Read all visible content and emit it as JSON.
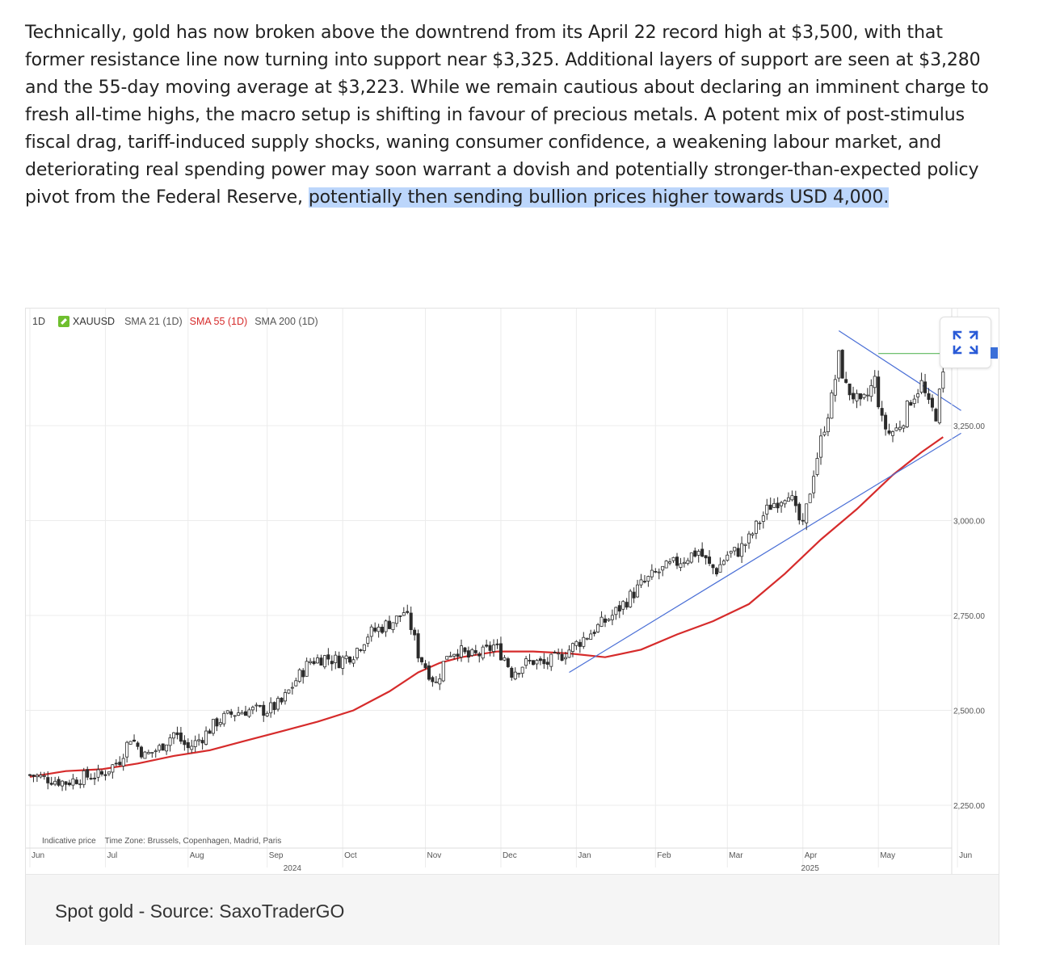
{
  "article": {
    "text_before": "Technically, gold has now broken above the downtrend from its April 22 record high at $3,500, with that former resistance line now turning into support near $3,325. Additional layers of support are seen at $3,280 and the 55-day moving average at $3,223. While we remain cautious about declaring an imminent charge to fresh all-time highs, the macro setup is shifting in favour of precious metals. A potent mix of post-stimulus fiscal drag, tariff-induced supply shocks, waning consumer confidence, a weakening labour market, and deteriorating real spending power may soon warrant a dovish and potentially stronger-than-expected policy pivot from the Federal Reserve, ",
    "text_highlighted": "potentially then sending bullion prices higher towards USD 4,000."
  },
  "figure": {
    "caption": "Spot gold - Source: SaxoTraderGO",
    "legend": {
      "timeframe": "1D",
      "symbol": "XAUUSD",
      "sma21": "SMA 21 (1D)",
      "sma55": "SMA 55 (1D)",
      "sma200": "SMA 200 (1D)"
    },
    "footnote": "Indicative price    Time Zone: Brussels, Copenhagen, Madrid, Paris",
    "expand_icon": "expand-arrows-icon"
  },
  "chart_data": {
    "type": "candlestick",
    "symbol": "XAUUSD",
    "timeframe": "1D",
    "colors": {
      "candles": "#2b2b2b",
      "sma55": "#d62b2b",
      "trendlines": "#4a6fd6",
      "resistance": "#5cb85c"
    },
    "ylim": [
      2100,
      3550
    ],
    "y_ticks": [
      {
        "value": 2250,
        "label": "2,250.00"
      },
      {
        "value": 2500,
        "label": "2,500.00"
      },
      {
        "value": 2750,
        "label": "2,750.00"
      },
      {
        "value": 3000,
        "label": "3,000.00"
      },
      {
        "value": 3250,
        "label": "3,250.00"
      }
    ],
    "x_months": [
      {
        "label": "Jun",
        "index": 0
      },
      {
        "label": "Jul",
        "index": 21
      },
      {
        "label": "Aug",
        "index": 44
      },
      {
        "label": "Sep",
        "index": 66
      },
      {
        "label": "Oct",
        "index": 87
      },
      {
        "label": "Nov",
        "index": 110
      },
      {
        "label": "Dec",
        "index": 131
      },
      {
        "label": "Jan",
        "index": 152
      },
      {
        "label": "Feb",
        "index": 174
      },
      {
        "label": "Mar",
        "index": 194
      },
      {
        "label": "Apr",
        "index": 215
      },
      {
        "label": "May",
        "index": 236
      },
      {
        "label": "Jun",
        "index": 258
      }
    ],
    "year_labels": [
      {
        "label": "2024",
        "index": 73
      },
      {
        "label": "2025",
        "index": 217
      }
    ],
    "close_path": [
      [
        0,
        2330
      ],
      [
        5,
        2320
      ],
      [
        10,
        2310
      ],
      [
        15,
        2325
      ],
      [
        20,
        2330
      ],
      [
        25,
        2370
      ],
      [
        28,
        2430
      ],
      [
        32,
        2380
      ],
      [
        36,
        2400
      ],
      [
        40,
        2440
      ],
      [
        44,
        2400
      ],
      [
        48,
        2430
      ],
      [
        52,
        2470
      ],
      [
        56,
        2490
      ],
      [
        60,
        2500
      ],
      [
        66,
        2500
      ],
      [
        70,
        2520
      ],
      [
        74,
        2580
      ],
      [
        78,
        2630
      ],
      [
        82,
        2640
      ],
      [
        86,
        2630
      ],
      [
        90,
        2650
      ],
      [
        94,
        2700
      ],
      [
        98,
        2720
      ],
      [
        102,
        2740
      ],
      [
        104,
        2760
      ],
      [
        106,
        2720
      ],
      [
        108,
        2650
      ],
      [
        111,
        2600
      ],
      [
        113,
        2570
      ],
      [
        116,
        2650
      ],
      [
        119,
        2660
      ],
      [
        122,
        2640
      ],
      [
        126,
        2650
      ],
      [
        129,
        2670
      ],
      [
        132,
        2640
      ],
      [
        134,
        2600
      ],
      [
        137,
        2620
      ],
      [
        140,
        2630
      ],
      [
        143,
        2620
      ],
      [
        147,
        2640
      ],
      [
        150,
        2660
      ],
      [
        154,
        2690
      ],
      [
        158,
        2720
      ],
      [
        162,
        2750
      ],
      [
        166,
        2790
      ],
      [
        170,
        2830
      ],
      [
        174,
        2860
      ],
      [
        178,
        2880
      ],
      [
        182,
        2900
      ],
      [
        186,
        2920
      ],
      [
        189,
        2880
      ],
      [
        191,
        2870
      ],
      [
        194,
        2910
      ],
      [
        197,
        2920
      ],
      [
        200,
        2950
      ],
      [
        203,
        3000
      ],
      [
        206,
        3040
      ],
      [
        209,
        3060
      ],
      [
        211,
        3080
      ],
      [
        213,
        3020
      ],
      [
        215,
        2980
      ],
      [
        218,
        3130
      ],
      [
        221,
        3250
      ],
      [
        223,
        3320
      ],
      [
        225,
        3430
      ],
      [
        227,
        3350
      ],
      [
        229,
        3330
      ],
      [
        231,
        3300
      ],
      [
        233,
        3330
      ],
      [
        235,
        3370
      ],
      [
        237,
        3260
      ],
      [
        239,
        3230
      ],
      [
        241,
        3240
      ],
      [
        243,
        3270
      ],
      [
        245,
        3320
      ],
      [
        248,
        3360
      ],
      [
        250,
        3300
      ],
      [
        252,
        3280
      ],
      [
        254,
        3380
      ]
    ],
    "sma55": [
      [
        0,
        2325
      ],
      [
        10,
        2340
      ],
      [
        20,
        2345
      ],
      [
        30,
        2360
      ],
      [
        40,
        2380
      ],
      [
        50,
        2395
      ],
      [
        60,
        2420
      ],
      [
        70,
        2445
      ],
      [
        80,
        2470
      ],
      [
        90,
        2500
      ],
      [
        100,
        2550
      ],
      [
        108,
        2600
      ],
      [
        114,
        2625
      ],
      [
        120,
        2640
      ],
      [
        130,
        2655
      ],
      [
        140,
        2655
      ],
      [
        150,
        2650
      ],
      [
        160,
        2640
      ],
      [
        170,
        2660
      ],
      [
        180,
        2700
      ],
      [
        190,
        2735
      ],
      [
        200,
        2780
      ],
      [
        210,
        2860
      ],
      [
        220,
        2950
      ],
      [
        230,
        3030
      ],
      [
        240,
        3120
      ],
      [
        248,
        3180
      ],
      [
        254,
        3220
      ]
    ],
    "annotations": [
      {
        "type": "downtrend",
        "from": [
          225,
          3500
        ],
        "to": [
          259,
          3290
        ]
      },
      {
        "type": "uptrend",
        "from": [
          150,
          2600
        ],
        "to": [
          259,
          3230
        ]
      },
      {
        "type": "resistance",
        "from": [
          236,
          3440
        ],
        "to": [
          255,
          3440
        ]
      }
    ]
  }
}
